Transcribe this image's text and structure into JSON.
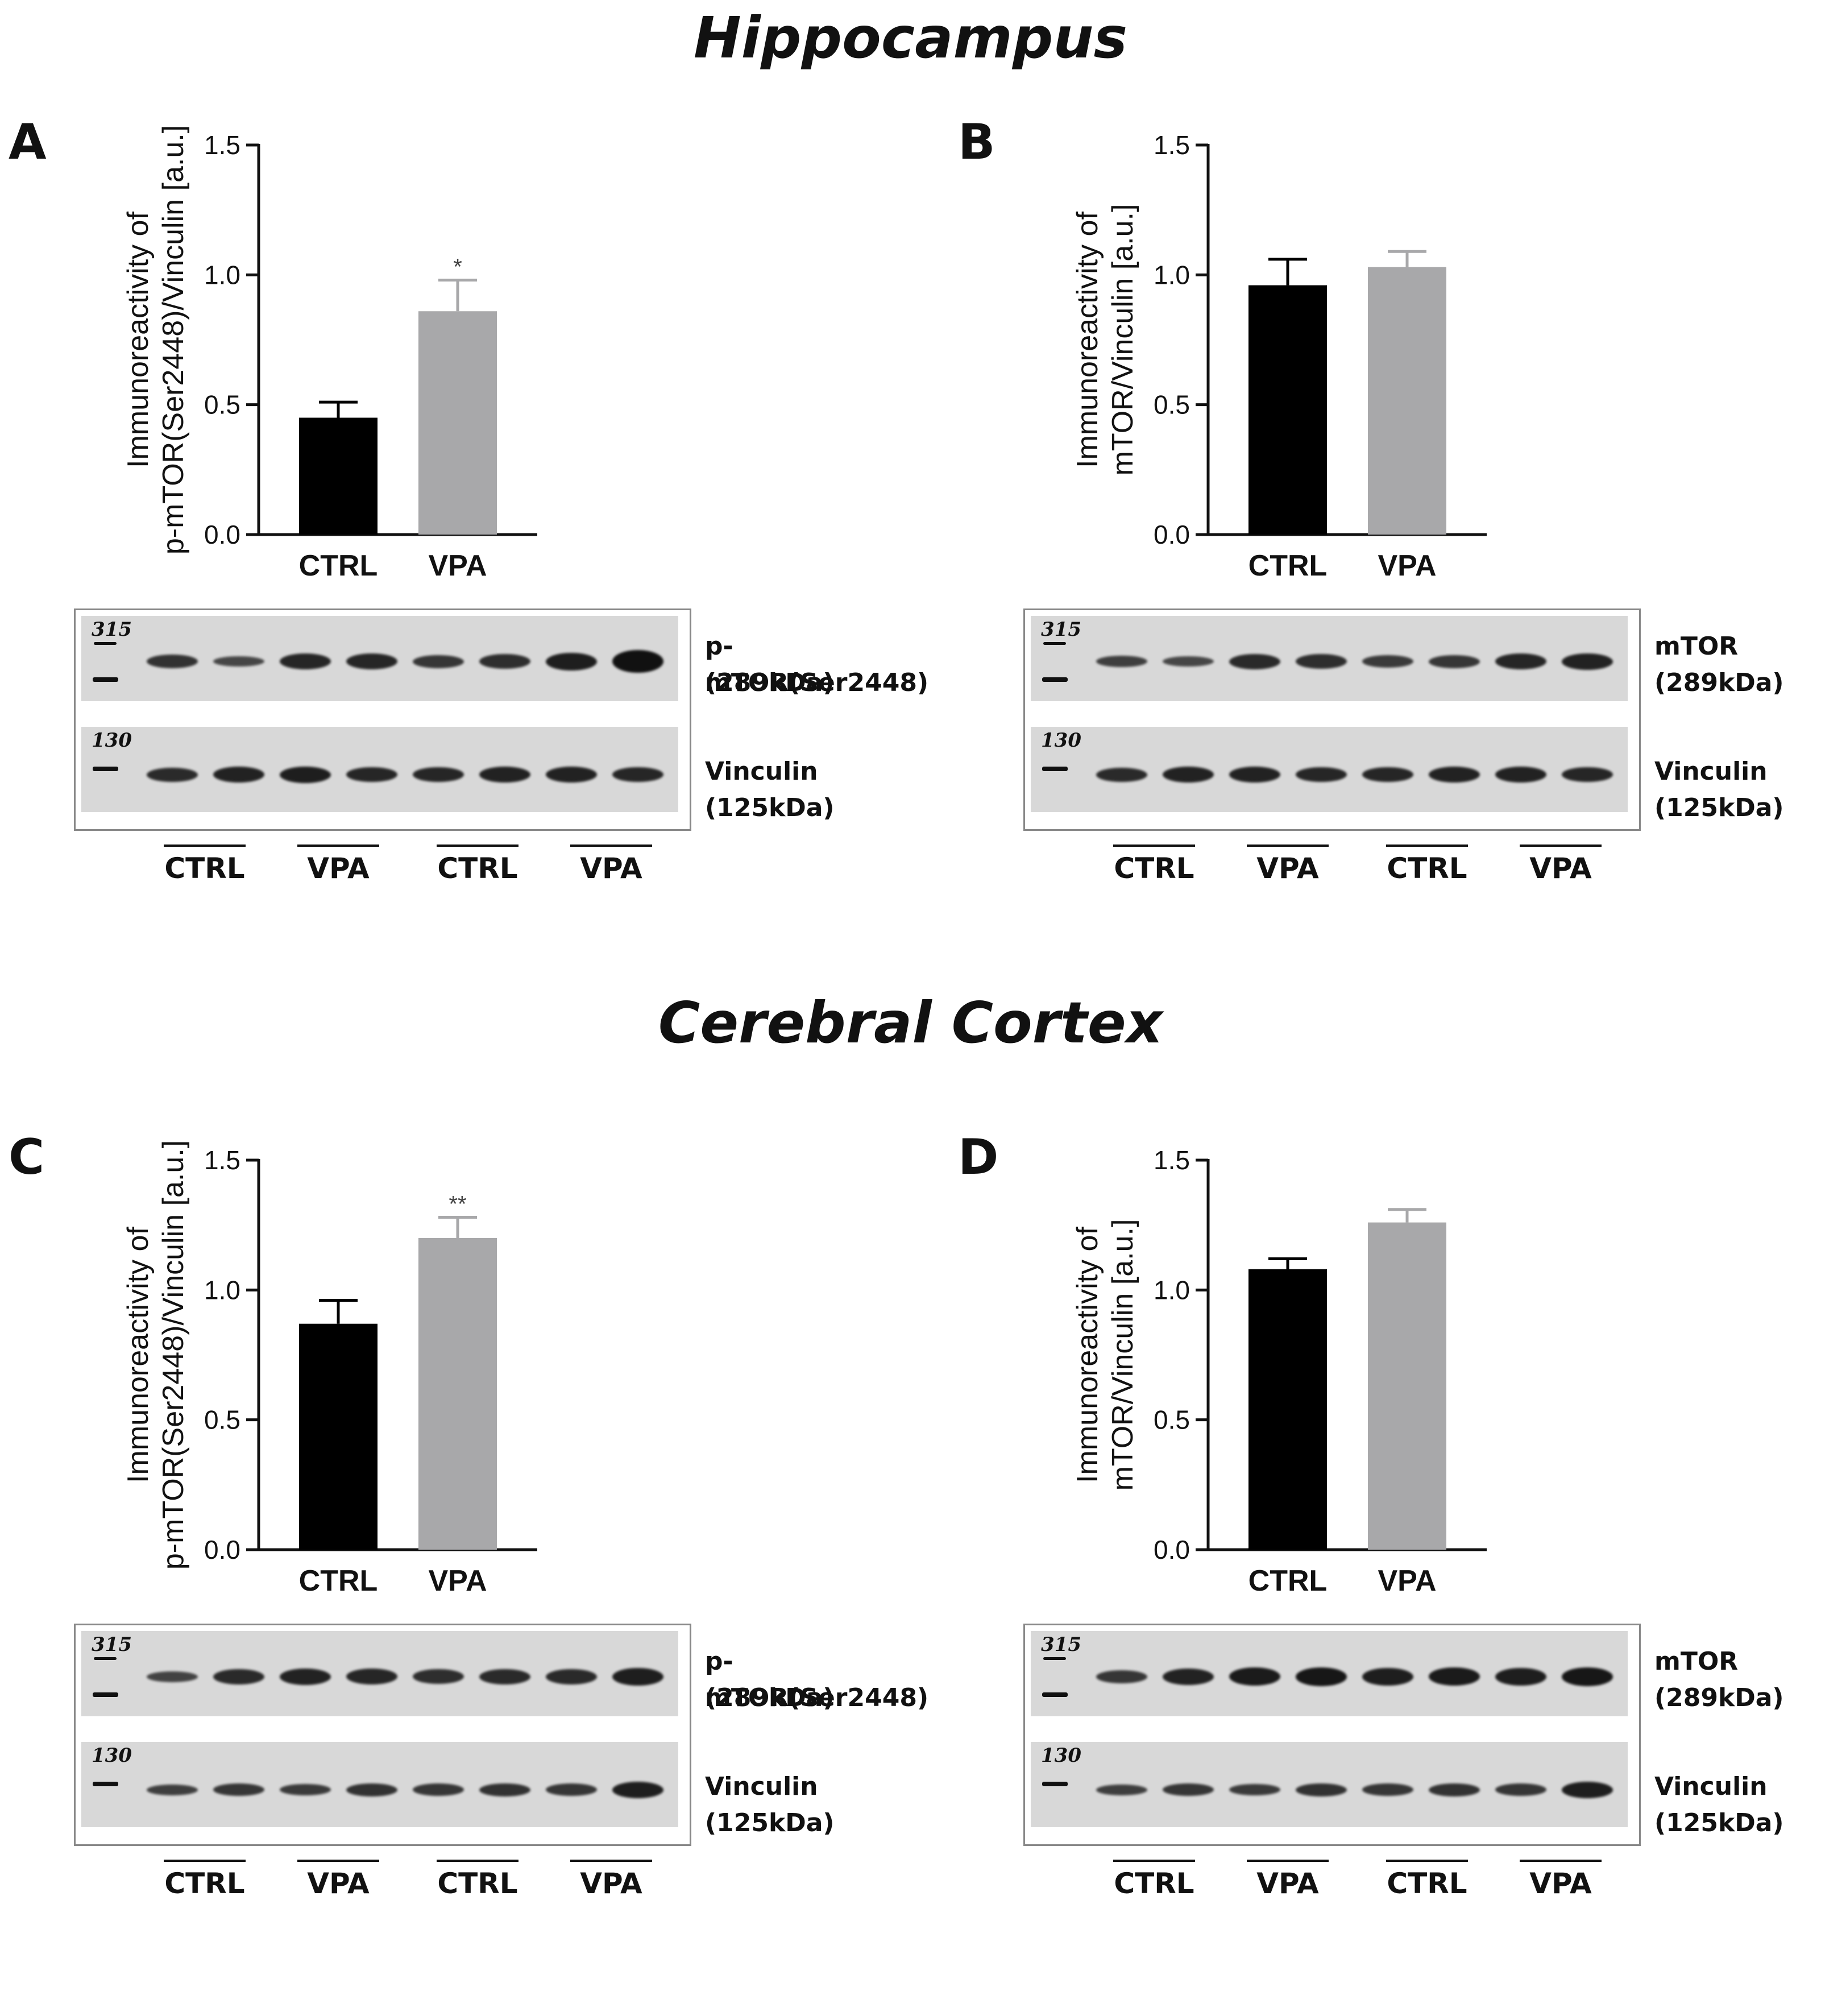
{
  "titles": {
    "hippocampus": "Hippocampus",
    "cortex": "Cerebral Cortex"
  },
  "colors": {
    "ctrl": "#000000",
    "vpa": "#a8a8aa",
    "axis": "#111111"
  },
  "chart_data": [
    {
      "panel": "A",
      "type": "bar",
      "region": "Hippocampus",
      "categories": [
        "CTRL",
        "VPA"
      ],
      "values": [
        0.45,
        0.86
      ],
      "errors": [
        0.06,
        0.12
      ],
      "significance": [
        "",
        "*"
      ],
      "ylabel_lines": [
        "Immunoreactivity of",
        "p-mTOR(Ser2448)/Vinculin [a.u.]"
      ],
      "ylim": [
        0,
        1.5
      ],
      "yticks": [
        "0.0",
        "0.5",
        "1.0",
        "1.5"
      ],
      "blot": {
        "target": "p-mTOR(Ser2448)",
        "target_kda": "(289kDa)",
        "loading": "Vinculin",
        "loading_kda": "(125kDa)",
        "marker_top": "315",
        "marker_bottom": "130",
        "groups": [
          "CTRL",
          "VPA",
          "CTRL",
          "VPA"
        ],
        "target_intensity": [
          0.7,
          0.45,
          0.85,
          0.85,
          0.65,
          0.75,
          0.95,
          1.3
        ],
        "loading_intensity": [
          0.8,
          0.9,
          0.95,
          0.85,
          0.85,
          0.9,
          0.9,
          0.85
        ]
      }
    },
    {
      "panel": "B",
      "type": "bar",
      "region": "Hippocampus",
      "categories": [
        "CTRL",
        "VPA"
      ],
      "values": [
        0.96,
        1.03
      ],
      "errors": [
        0.1,
        0.06
      ],
      "significance": [
        "",
        ""
      ],
      "ylabel_lines": [
        "Immunoreactivity of",
        "mTOR/Vinculin [a.u.]"
      ],
      "ylim": [
        0,
        1.5
      ],
      "yticks": [
        "0.0",
        "0.5",
        "1.0",
        "1.5"
      ],
      "blot": {
        "target": "mTOR",
        "target_kda": "(289kDa)",
        "loading": "Vinculin",
        "loading_kda": "(125kDa)",
        "marker_top": "315",
        "marker_bottom": "130",
        "groups": [
          "CTRL",
          "VPA",
          "CTRL",
          "VPA"
        ],
        "target_intensity": [
          0.55,
          0.45,
          0.8,
          0.75,
          0.6,
          0.65,
          0.85,
          0.9
        ],
        "loading_intensity": [
          0.8,
          0.9,
          0.9,
          0.85,
          0.85,
          0.9,
          0.9,
          0.85
        ]
      }
    },
    {
      "panel": "C",
      "type": "bar",
      "region": "Cerebral Cortex",
      "categories": [
        "CTRL",
        "VPA"
      ],
      "values": [
        0.87,
        1.2
      ],
      "errors": [
        0.09,
        0.08
      ],
      "significance": [
        "",
        "**"
      ],
      "ylabel_lines": [
        "Immunoreactivity of",
        "p-mTOR(Ser2448)/Vinculin [a.u.]"
      ],
      "ylim": [
        0,
        1.5
      ],
      "yticks": [
        "0.0",
        "0.5",
        "1.0",
        "1.5"
      ],
      "blot": {
        "target": "p-mTOR(Ser2448)",
        "target_kda": "(289kDa)",
        "loading": "Vinculin",
        "loading_kda": "(125kDa)",
        "marker_top": "315",
        "marker_bottom": "130",
        "groups": [
          "CTRL",
          "VPA",
          "CTRL",
          "VPA"
        ],
        "target_intensity": [
          0.5,
          0.8,
          0.9,
          0.85,
          0.75,
          0.8,
          0.8,
          0.95
        ],
        "loading_intensity": [
          0.55,
          0.65,
          0.6,
          0.7,
          0.65,
          0.7,
          0.65,
          0.95
        ]
      }
    },
    {
      "panel": "D",
      "type": "bar",
      "region": "Cerebral Cortex",
      "categories": [
        "CTRL",
        "VPA"
      ],
      "values": [
        1.08,
        1.26
      ],
      "errors": [
        0.04,
        0.05
      ],
      "significance": [
        "",
        ""
      ],
      "ylabel_lines": [
        "Immunoreactivity of",
        "mTOR/Vinculin [a.u.]"
      ],
      "ylim": [
        0,
        1.5
      ],
      "yticks": [
        "0.0",
        "0.5",
        "1.0",
        "1.5"
      ],
      "blot": {
        "target": "mTOR",
        "target_kda": "(289kDa)",
        "loading": "Vinculin",
        "loading_kda": "(125kDa)",
        "marker_top": "315",
        "marker_bottom": "130",
        "groups": [
          "CTRL",
          "VPA",
          "CTRL",
          "VPA"
        ],
        "target_intensity": [
          0.65,
          0.9,
          1.0,
          1.05,
          0.95,
          1.0,
          0.95,
          1.05
        ],
        "loading_intensity": [
          0.55,
          0.65,
          0.6,
          0.7,
          0.65,
          0.7,
          0.65,
          0.95
        ]
      }
    }
  ]
}
